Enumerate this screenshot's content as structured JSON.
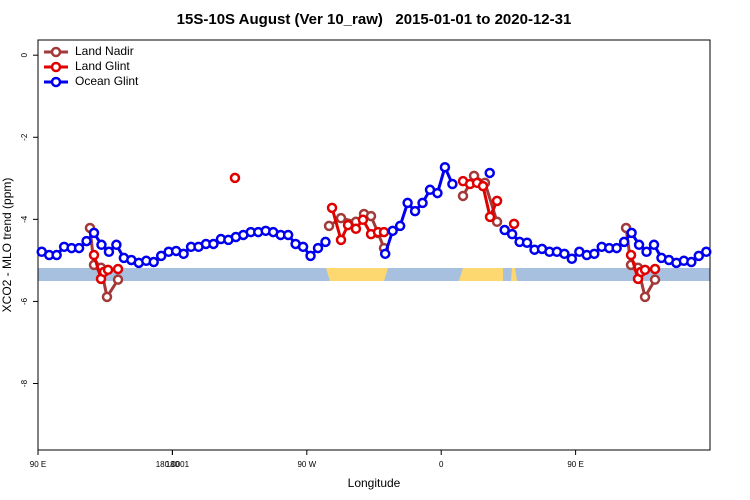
{
  "chart_data": {
    "type": "line",
    "title": "15S-10S August (Ver 10_raw)   2015-01-01 to 2020-12-31",
    "x_label": "Longitude",
    "y_label": "XCO2 - MLO trend (ppm)",
    "xlim": [
      90,
      540
    ],
    "xticks": [
      {
        "value": 90,
        "label": "90 E"
      },
      180,
      {
        "value": 270,
        "label": "90 W"
      },
      {
        "value": 360,
        "label": "0"
      },
      {
        "value": 450,
        "label": "90 E"
      },
      180.0001
    ],
    "ylim": [
      -9.62,
      0.37
    ],
    "yticks": [
      0,
      -2,
      -4,
      -6,
      -8
    ],
    "legend": "top-left",
    "series": [
      {
        "name": "Land Nadir",
        "color": "#a33a3a",
        "x": [
          124.8,
          127.5,
          132.2,
          136.2,
          143.6,
          null,
          284.9,
          292.9,
          302.9,
          308.3,
          313.0,
          317.7,
          321.7,
          null,
          374.6,
          382.0,
          389.3,
          397.4,
          null,
          483.8,
          487.1,
          491.8,
          496.5,
          503.2
        ],
        "values": [
          -4.21,
          -5.11,
          -5.18,
          -5.89,
          -5.47,
          null,
          -4.16,
          -3.97,
          -4.06,
          -3.87,
          -3.92,
          -4.33,
          -4.7,
          null,
          -3.43,
          -2.94,
          -3.11,
          -4.06,
          null,
          -4.21,
          -5.11,
          -5.18,
          -5.89,
          -5.47
        ]
      },
      {
        "name": "Land Glint",
        "color": "#e00000",
        "x": [
          127.5,
          132.2,
          134.2,
          136.9,
          143.6,
          null,
          221.9,
          null,
          286.9,
          292.9,
          297.6,
          302.9,
          307.6,
          313.0,
          317.7,
          321.7,
          null,
          374.6,
          379.3,
          384.0,
          388.0,
          392.7,
          397.4,
          null,
          408.8,
          null,
          487.1,
          491.8,
          493.8,
          496.5,
          503.2
        ],
        "values": [
          -4.87,
          -5.45,
          -5.28,
          -5.23,
          -5.21,
          null,
          -2.99,
          null,
          -3.72,
          -4.5,
          -4.14,
          -4.23,
          -4.01,
          -4.36,
          -4.31,
          -4.31,
          null,
          -3.07,
          -3.14,
          -3.11,
          -3.19,
          -3.94,
          -3.55,
          null,
          -4.11,
          null,
          -4.87,
          -5.45,
          -5.28,
          -5.23,
          -5.21
        ]
      },
      {
        "name": "Ocean Glint",
        "color": "#0000ee",
        "x": [
          92.5,
          97.5,
          102.5,
          107.5,
          112.5,
          117.5,
          122.5,
          127.5,
          132.5,
          137.5,
          142.5,
          147.5,
          152.5,
          157.5,
          162.5,
          167.5,
          172.5,
          177.5,
          182.5,
          187.5,
          192.5,
          197.5,
          202.5,
          207.5,
          212.5,
          217.5,
          222.5,
          227.5,
          232.5,
          237.5,
          242.5,
          247.5,
          252.5,
          257.5,
          262.5,
          267.5,
          272.5,
          277.5,
          282.5,
          null,
          322.5,
          327.5,
          332.5,
          337.5,
          342.5,
          347.5,
          352.5,
          357.5,
          362.5,
          367.5,
          null,
          392.5,
          null,
          402.5,
          407.5,
          412.5,
          417.5,
          422.5,
          427.5,
          432.5,
          437.5,
          442.5,
          447.5,
          452.5,
          457.5,
          462.5,
          467.5,
          472.5,
          477.5,
          482.5,
          487.5,
          492.5,
          497.5,
          502.5,
          507.5,
          512.5,
          517.5,
          522.5,
          527.5,
          532.5,
          537.5
        ],
        "values": [
          -4.79,
          -4.87,
          -4.87,
          -4.67,
          -4.7,
          -4.7,
          -4.53,
          -4.33,
          -4.62,
          -4.79,
          -4.62,
          -4.94,
          -4.99,
          -5.06,
          -5.01,
          -5.04,
          -4.89,
          -4.79,
          -4.77,
          -4.84,
          -4.67,
          -4.67,
          -4.6,
          -4.6,
          -4.48,
          -4.5,
          -4.43,
          -4.38,
          -4.31,
          -4.31,
          -4.28,
          -4.31,
          -4.38,
          -4.38,
          -4.6,
          -4.67,
          -4.89,
          -4.7,
          -4.55,
          null,
          -4.84,
          -4.28,
          -4.16,
          -3.6,
          -3.8,
          -3.6,
          -3.28,
          -3.36,
          -2.73,
          -3.14,
          null,
          -2.87,
          null,
          -4.26,
          -4.36,
          -4.55,
          -4.57,
          -4.74,
          -4.72,
          -4.79,
          -4.79,
          -4.84,
          -4.96,
          -4.79,
          -4.87,
          -4.84,
          -4.67,
          -4.7,
          -4.7,
          -4.55,
          -4.33,
          -4.62,
          -4.79,
          -4.62,
          -4.94,
          -4.99,
          -5.06,
          -5.01,
          -5.04,
          -4.89,
          -4.79
        ]
      }
    ]
  }
}
